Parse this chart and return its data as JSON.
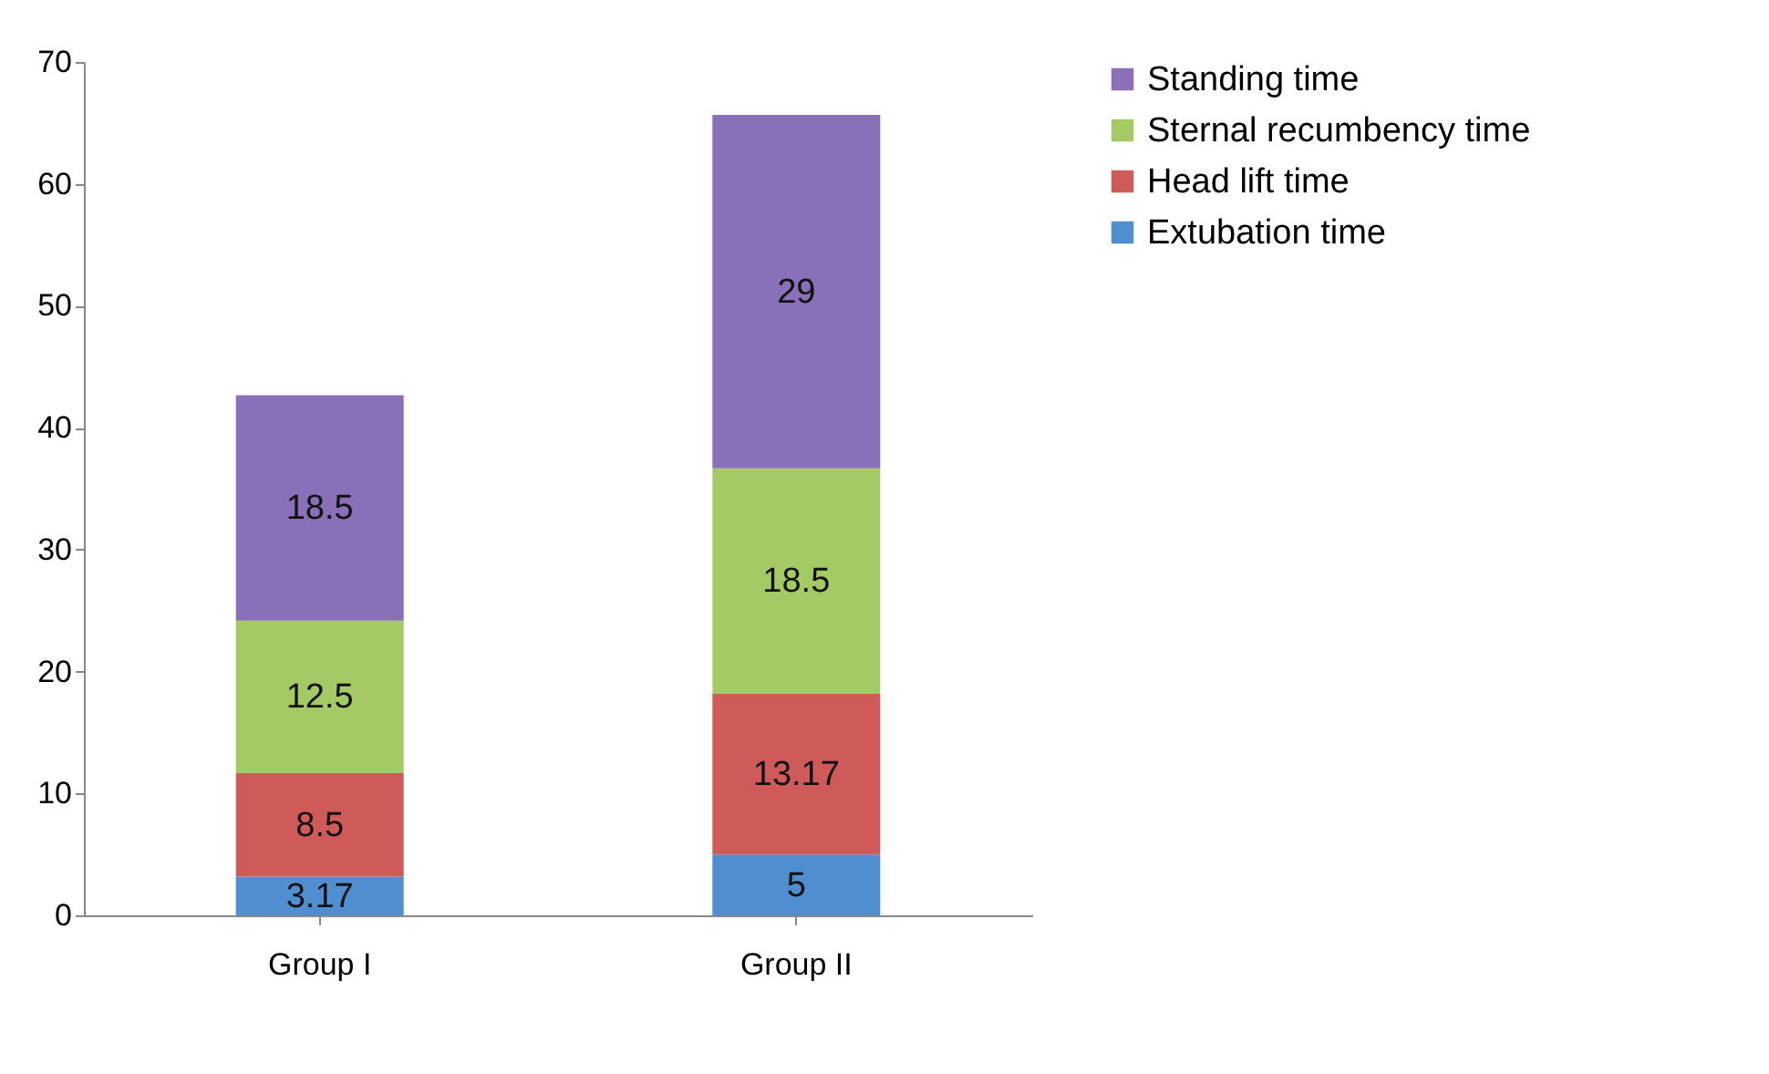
{
  "chart_data": {
    "type": "bar",
    "stacked": true,
    "categories": [
      "Group I",
      "Group II"
    ],
    "series": [
      {
        "name": "Extubation time",
        "color": "#4f8fd0",
        "values": [
          3.17,
          5
        ]
      },
      {
        "name": "Head lift time",
        "color": "#cf5a5a",
        "values": [
          8.5,
          13.17
        ]
      },
      {
        "name": "Sternal recumbency time",
        "color": "#a5c964",
        "values": [
          12.5,
          18.5
        ]
      },
      {
        "name": "Standing time",
        "color": "#8a70b8",
        "values": [
          18.5,
          29
        ]
      }
    ],
    "ylim": [
      0,
      70
    ],
    "yticks": [
      0,
      10,
      20,
      30,
      40,
      50,
      60,
      70
    ],
    "grid": false,
    "legend": "right",
    "data_labels": true
  }
}
